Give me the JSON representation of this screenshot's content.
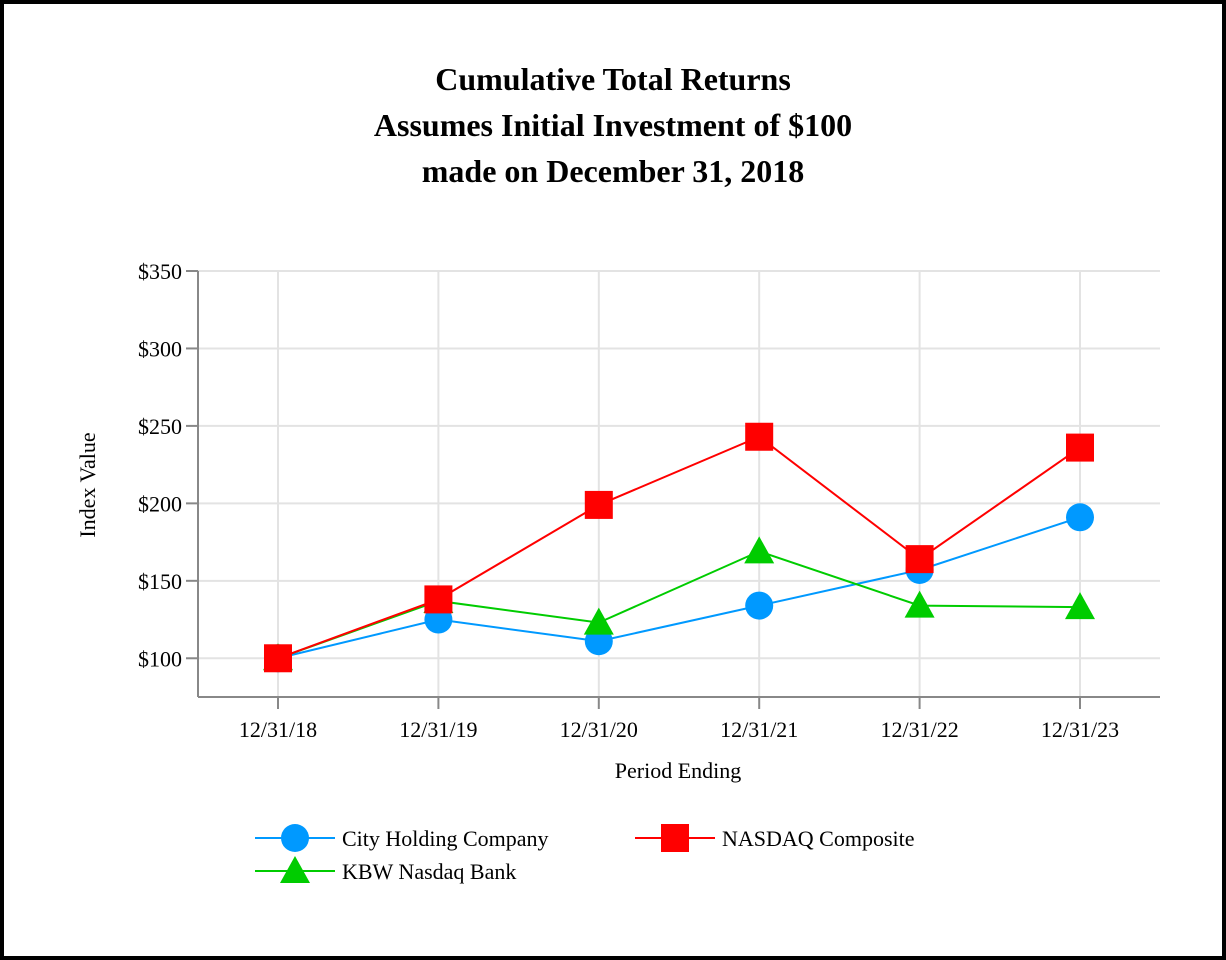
{
  "chart_data": {
    "type": "line",
    "title": [
      "Cumulative Total Returns",
      "Assumes Initial Investment of $100",
      "made on December 31, 2018"
    ],
    "xlabel": "Period Ending",
    "ylabel": "Index Value",
    "categories": [
      "12/31/18",
      "12/31/19",
      "12/31/20",
      "12/31/21",
      "12/31/22",
      "12/31/23"
    ],
    "yticks": [
      100,
      150,
      200,
      250,
      300,
      350
    ],
    "ytick_labels": [
      "$100",
      "$150",
      "$200",
      "$250",
      "$300",
      "$350"
    ],
    "ylim": [
      75,
      350
    ],
    "grid": true,
    "legend_position": "bottom",
    "series": [
      {
        "name": "City Holding Company",
        "color": "#0099ff",
        "marker": "circle",
        "values": [
          100,
          125,
          111,
          134,
          157,
          191
        ]
      },
      {
        "name": "NASDAQ Composite",
        "color": "#ff0000",
        "marker": "square",
        "values": [
          100,
          138,
          199,
          243,
          164,
          236
        ]
      },
      {
        "name": "KBW Nasdaq Bank",
        "color": "#00cc00",
        "marker": "triangle",
        "values": [
          100,
          137,
          123,
          169,
          134,
          133
        ]
      }
    ]
  }
}
